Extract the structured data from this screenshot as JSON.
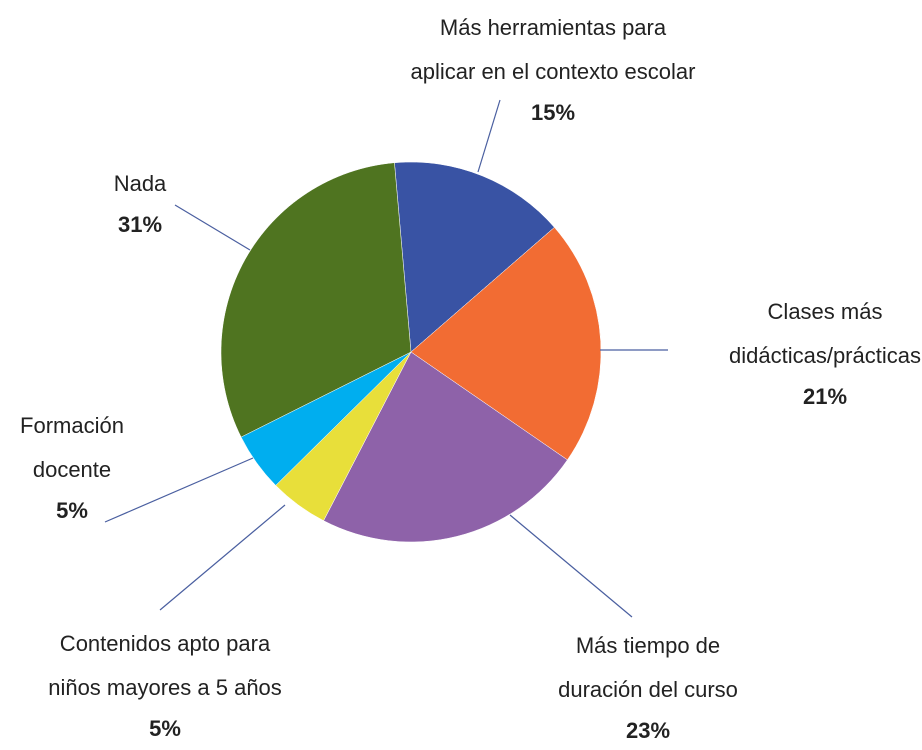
{
  "chart_data": {
    "type": "pie",
    "categories": [
      "Más herramientas para\naplicar en el contexto escolar",
      "Clases más\ndidácticas/prácticas",
      "Más tiempo de\nduración del curso",
      "Contenidos apto para\nniños mayores a 5 años",
      "Formación\ndocente",
      "Nada"
    ],
    "values": [
      15,
      21,
      23,
      5,
      5,
      31
    ],
    "value_labels": [
      "15%",
      "21%",
      "23%",
      "5%",
      "5%",
      "31%"
    ],
    "colors": [
      "#3953a4",
      "#f26c33",
      "#8e62a9",
      "#e8df3a",
      "#00aeef",
      "#4f7420"
    ]
  }
}
